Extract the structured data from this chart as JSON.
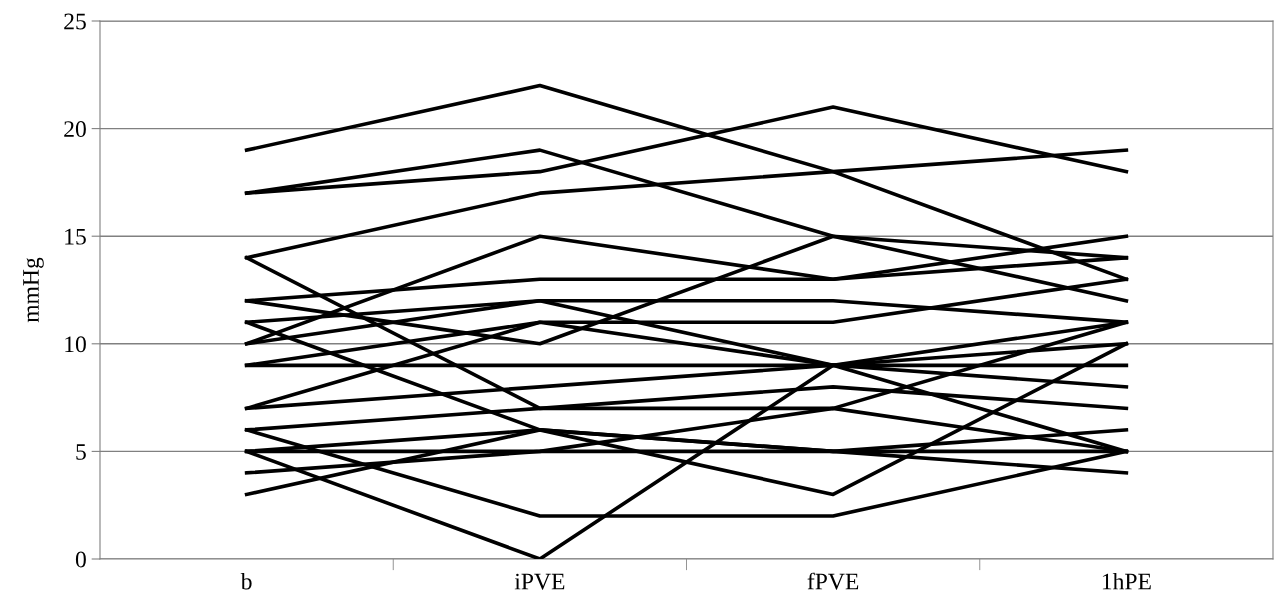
{
  "chart_data": {
    "type": "line",
    "ylabel": "mmHg",
    "categories": [
      "b",
      "iPVE",
      "fPVE",
      "1hPE"
    ],
    "ylim": [
      0,
      25
    ],
    "yticks": [
      0,
      5,
      10,
      15,
      20,
      25
    ],
    "grid": "y",
    "legend": false,
    "marker": "none",
    "line_style": "solid",
    "series": [
      {
        "color": "#000000",
        "values": [
          19,
          22,
          18,
          13
        ]
      },
      {
        "color": "#000000",
        "values": [
          17,
          19,
          15,
          12
        ]
      },
      {
        "color": "#000000",
        "values": [
          17,
          18,
          21,
          18
        ]
      },
      {
        "color": "#000000",
        "values": [
          14,
          17,
          18,
          19
        ]
      },
      {
        "color": "#000000",
        "values": [
          14,
          7,
          7,
          11
        ]
      },
      {
        "color": "#000000",
        "values": [
          12,
          13,
          13,
          14
        ]
      },
      {
        "color": "#000000",
        "values": [
          12,
          10,
          15,
          14
        ]
      },
      {
        "color": "#000000",
        "values": [
          11,
          12,
          12,
          11
        ]
      },
      {
        "color": "#000000",
        "values": [
          11,
          6,
          3,
          10
        ]
      },
      {
        "color": "#000000",
        "values": [
          10,
          15,
          13,
          15
        ]
      },
      {
        "color": "#000000",
        "values": [
          10,
          12,
          9,
          9
        ]
      },
      {
        "color": "#000000",
        "values": [
          9,
          9,
          9,
          8
        ]
      },
      {
        "color": "#000000",
        "values": [
          9,
          11,
          11,
          13
        ]
      },
      {
        "color": "#000000",
        "values": [
          7,
          11,
          9,
          10
        ]
      },
      {
        "color": "#000000",
        "values": [
          7,
          8,
          9,
          5
        ]
      },
      {
        "color": "#000000",
        "values": [
          6,
          7,
          8,
          7
        ]
      },
      {
        "color": "#000000",
        "values": [
          6,
          2,
          2,
          5
        ]
      },
      {
        "color": "#000000",
        "values": [
          5,
          5,
          5,
          5
        ]
      },
      {
        "color": "#000000",
        "values": [
          5,
          6,
          5,
          6
        ]
      },
      {
        "color": "#000000",
        "values": [
          5,
          0,
          9,
          11
        ]
      },
      {
        "color": "#000000",
        "values": [
          4,
          5,
          7,
          5
        ]
      },
      {
        "color": "#000000",
        "values": [
          3,
          6,
          5,
          4
        ]
      }
    ]
  }
}
